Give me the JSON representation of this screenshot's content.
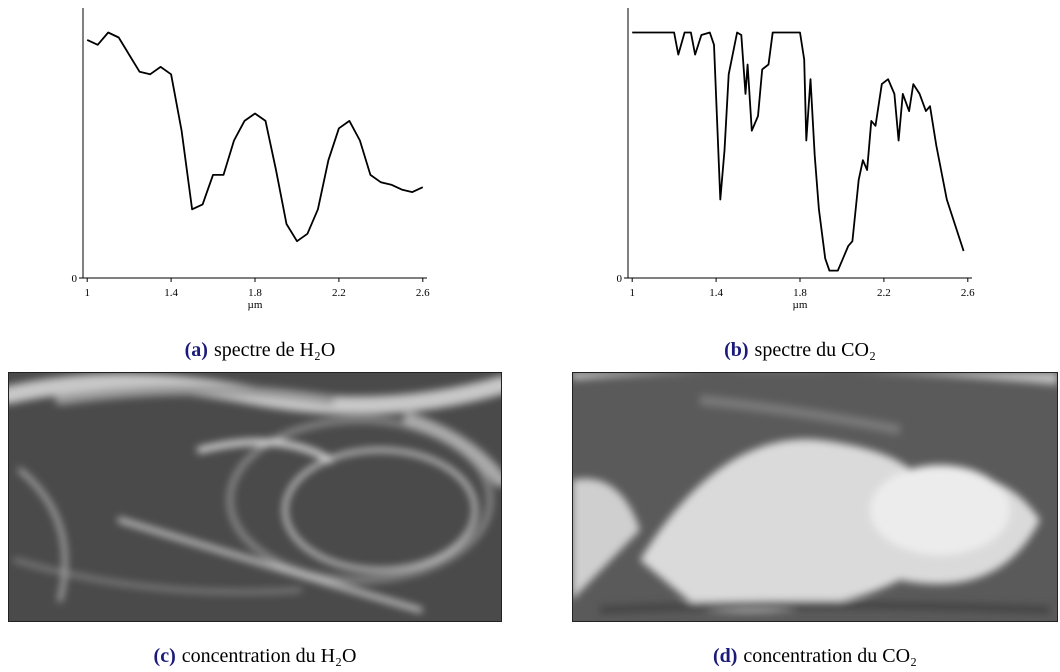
{
  "chart_data": [
    {
      "type": "line",
      "x_label": "µm",
      "x": [
        1.0,
        1.05,
        1.1,
        1.15,
        1.2,
        1.25,
        1.3,
        1.35,
        1.4,
        1.45,
        1.5,
        1.55,
        1.6,
        1.65,
        1.7,
        1.75,
        1.8,
        1.85,
        1.9,
        1.95,
        2.0,
        2.05,
        2.1,
        2.15,
        2.2,
        2.25,
        2.3,
        2.35,
        2.4,
        2.45,
        2.5,
        2.55,
        2.6
      ],
      "values": [
        0.97,
        0.95,
        1.0,
        0.98,
        0.91,
        0.84,
        0.83,
        0.86,
        0.83,
        0.6,
        0.28,
        0.3,
        0.42,
        0.42,
        0.56,
        0.64,
        0.67,
        0.64,
        0.44,
        0.22,
        0.15,
        0.18,
        0.28,
        0.48,
        0.61,
        0.64,
        0.56,
        0.42,
        0.39,
        0.38,
        0.36,
        0.35,
        0.37
      ],
      "color": "#000000",
      "xlim": [
        0.98,
        2.62
      ],
      "ylim": [
        0,
        1.1
      ],
      "xticks": [
        1,
        1.4,
        1.8,
        2.2,
        2.6
      ],
      "yticks": [
        0
      ]
    },
    {
      "type": "line",
      "x_label": "µm",
      "x": [
        1.0,
        1.2,
        1.22,
        1.25,
        1.28,
        1.3,
        1.33,
        1.37,
        1.39,
        1.42,
        1.44,
        1.46,
        1.5,
        1.52,
        1.54,
        1.55,
        1.57,
        1.6,
        1.62,
        1.65,
        1.67,
        1.8,
        1.82,
        1.83,
        1.85,
        1.87,
        1.89,
        1.92,
        1.94,
        1.98,
        2.0,
        2.03,
        2.05,
        2.08,
        2.1,
        2.12,
        2.14,
        2.16,
        2.19,
        2.22,
        2.25,
        2.27,
        2.29,
        2.32,
        2.34,
        2.37,
        2.4,
        2.42,
        2.45,
        2.5,
        2.58
      ],
      "values": [
        1.0,
        1.0,
        0.91,
        1.0,
        1.0,
        0.91,
        0.99,
        1.0,
        0.95,
        0.32,
        0.52,
        0.83,
        1.0,
        0.99,
        0.75,
        0.87,
        0.6,
        0.66,
        0.85,
        0.87,
        1.0,
        1.0,
        0.89,
        0.56,
        0.81,
        0.5,
        0.28,
        0.08,
        0.03,
        0.03,
        0.07,
        0.13,
        0.15,
        0.4,
        0.48,
        0.44,
        0.64,
        0.62,
        0.79,
        0.81,
        0.75,
        0.56,
        0.75,
        0.68,
        0.79,
        0.75,
        0.68,
        0.7,
        0.54,
        0.32,
        0.11
      ],
      "color": "#000000",
      "xlim": [
        0.98,
        2.62
      ],
      "ylim": [
        0,
        1.1
      ],
      "xticks": [
        1,
        1.4,
        1.8,
        2.2,
        2.6
      ],
      "yticks": [
        0
      ]
    }
  ],
  "subfigures": [
    {
      "label": "(a)",
      "caption": "spectre de H₂O"
    },
    {
      "label": "(b)",
      "caption": "spectre du CO₂"
    },
    {
      "label": "(c)",
      "caption": "concentration du H₂O"
    },
    {
      "label": "(d)",
      "caption": "concentration du CO₂"
    }
  ]
}
